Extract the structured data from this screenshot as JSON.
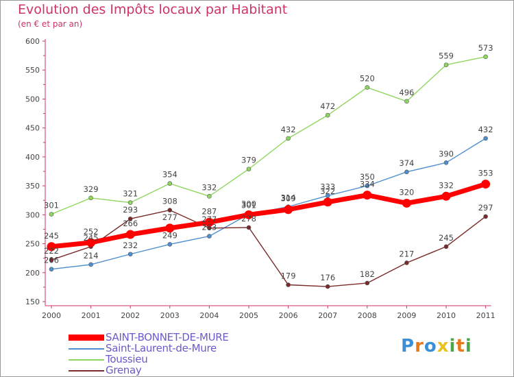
{
  "title": "Evolution des Impôts locaux par Habitant",
  "subtitle": "(en € et par an)",
  "logo": {
    "letters": [
      {
        "ch": "P",
        "color": "#3a8fd6"
      },
      {
        "ch": "r",
        "color": "#e87a1e"
      },
      {
        "ch": "o",
        "color": "#3a8fd6"
      },
      {
        "ch": "x",
        "color": "#e8c21e"
      },
      {
        "ch": "i",
        "color": "#4aa84a"
      },
      {
        "ch": "t",
        "color": "#e87a1e"
      },
      {
        "ch": "i",
        "color": "#4aa84a"
      }
    ]
  },
  "chart_data": {
    "type": "line",
    "title": "Evolution des Impôts locaux par Habitant",
    "subtitle": "(en € et par an)",
    "x": [
      "2000",
      "2001",
      "2002",
      "2003",
      "2004",
      "2005",
      "2006",
      "2007",
      "2008",
      "2009",
      "2010",
      "2011"
    ],
    "ylim": [
      150,
      600
    ],
    "yticks": [
      150,
      200,
      250,
      300,
      350,
      400,
      450,
      500,
      550,
      600
    ],
    "grid": false,
    "legend_position": "bottom-left",
    "series": [
      {
        "name": "SAINT-BONNET-DE-MURE",
        "color": "#ff0000",
        "values": [
          245,
          252,
          266,
          277,
          287,
          300,
          309,
          322,
          334,
          320,
          332,
          353
        ],
        "labels": [
          "245",
          "252",
          "266",
          "277",
          "287",
          "300",
          "309",
          "322",
          "334",
          "320",
          "332",
          "353"
        ],
        "emphasis": true
      },
      {
        "name": "Saint-Laurent-de-Mure",
        "color": "#4f8fcf",
        "values": [
          206,
          214,
          232,
          249,
          263,
          301,
          314,
          333,
          350,
          374,
          390,
          432
        ],
        "labels": [
          "206",
          "214",
          "232",
          "249",
          "263",
          "301",
          "314",
          "333",
          "350",
          "374",
          "390",
          "432"
        ],
        "emphasis": false
      },
      {
        "name": "Toussieu",
        "color": "#8fd660",
        "values": [
          301,
          329,
          321,
          354,
          332,
          379,
          432,
          472,
          520,
          496,
          559,
          573
        ],
        "labels": [
          "301",
          "329",
          "321",
          "354",
          "332",
          "379",
          "432",
          "472",
          "520",
          "496",
          "559",
          "573"
        ],
        "emphasis": false
      },
      {
        "name": "Grenay",
        "color": "#7a2a2a",
        "values": [
          222,
          245,
          293,
          308,
          277,
          278,
          179,
          176,
          182,
          217,
          245,
          297
        ],
        "labels": [
          "222",
          "245",
          "293",
          "308",
          "277",
          "278",
          "179",
          "176",
          "182",
          "217",
          "245",
          "297"
        ],
        "emphasis": false
      }
    ]
  }
}
